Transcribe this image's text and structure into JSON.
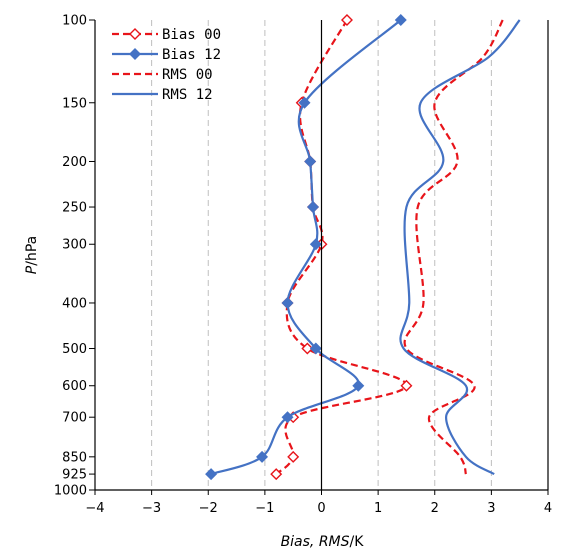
{
  "chart_data": {
    "type": "line",
    "xlabel": {
      "italic_part": "Bias, RMS",
      "plain_part": "/K"
    },
    "ylabel": {
      "italic_part": "P",
      "plain_part": "/hPa"
    },
    "xlim": [
      -4,
      4
    ],
    "x_ticks": [
      -4,
      -3,
      -2,
      -1,
      0,
      1,
      2,
      3,
      4
    ],
    "x_tick_labels": [
      "−4",
      "−3",
      "−2",
      "−1",
      "0",
      "1",
      "2",
      "3",
      "4"
    ],
    "y_scale": "log",
    "ylim": [
      100,
      1000
    ],
    "y_ticks": [
      100,
      150,
      200,
      250,
      300,
      400,
      500,
      600,
      700,
      850,
      925,
      1000
    ],
    "y_tick_labels": [
      "100",
      "150",
      "200",
      "250",
      "300",
      "400",
      "500",
      "600",
      "700",
      "850",
      "925",
      "1000"
    ],
    "grid": "dashed vertical lines at x ticks",
    "zero_line": true,
    "legend_position": "top-left",
    "colors": {
      "series_00": "#e8141a",
      "series_12": "#4472c4"
    },
    "series": [
      {
        "name": "Bias 00",
        "style": "dashed",
        "marker": "open-diamond",
        "color": "#e8141a",
        "points": [
          [
            0.45,
            100
          ],
          [
            -0.35,
            150
          ],
          [
            -0.2,
            200
          ],
          [
            -0.15,
            250
          ],
          [
            0.0,
            300
          ],
          [
            -0.6,
            400
          ],
          [
            -0.25,
            500
          ],
          [
            1.5,
            600
          ],
          [
            -0.5,
            700
          ],
          [
            -0.5,
            850
          ],
          [
            -0.8,
            925
          ]
        ]
      },
      {
        "name": "Bias 12",
        "style": "solid",
        "marker": "filled-diamond",
        "color": "#4472c4",
        "points": [
          [
            1.4,
            100
          ],
          [
            -0.3,
            150
          ],
          [
            -0.2,
            200
          ],
          [
            -0.15,
            250
          ],
          [
            -0.1,
            300
          ],
          [
            -0.6,
            400
          ],
          [
            -0.1,
            500
          ],
          [
            0.65,
            600
          ],
          [
            -0.6,
            700
          ],
          [
            -1.05,
            850
          ],
          [
            -1.95,
            925
          ]
        ]
      },
      {
        "name": "RMS 00",
        "style": "dashed",
        "marker": "none",
        "color": "#e8141a",
        "points": [
          [
            3.2,
            100
          ],
          [
            2.85,
            120
          ],
          [
            2.0,
            150
          ],
          [
            2.4,
            200
          ],
          [
            1.7,
            250
          ],
          [
            1.8,
            400
          ],
          [
            1.5,
            500
          ],
          [
            2.7,
            600
          ],
          [
            1.9,
            700
          ],
          [
            2.45,
            850
          ],
          [
            2.55,
            925
          ]
        ]
      },
      {
        "name": "RMS 12",
        "style": "solid",
        "marker": "none",
        "color": "#4472c4",
        "points": [
          [
            3.5,
            100
          ],
          [
            2.95,
            120
          ],
          [
            1.75,
            150
          ],
          [
            2.15,
            200
          ],
          [
            1.5,
            250
          ],
          [
            1.55,
            400
          ],
          [
            1.45,
            500
          ],
          [
            2.55,
            600
          ],
          [
            2.2,
            700
          ],
          [
            2.55,
            850
          ],
          [
            3.05,
            925
          ]
        ]
      }
    ]
  }
}
